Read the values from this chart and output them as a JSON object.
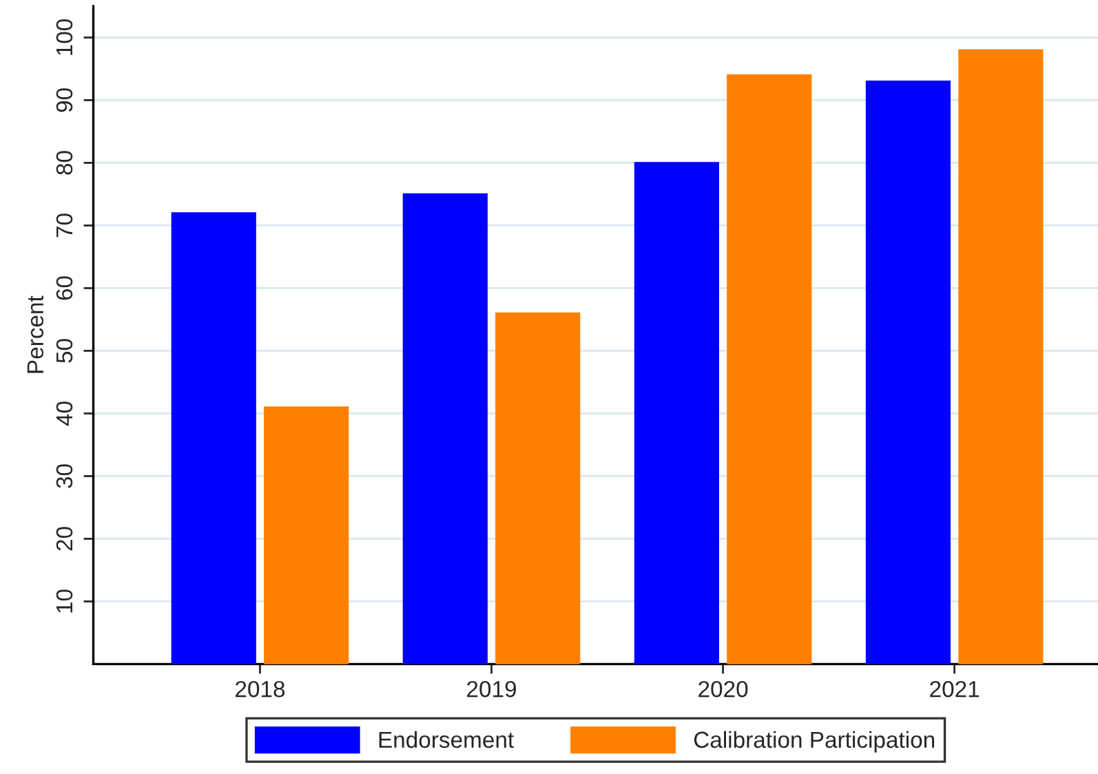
{
  "chart_data": {
    "type": "bar",
    "ylabel": "Percent",
    "categories": [
      "2018",
      "2019",
      "2020",
      "2021"
    ],
    "series": [
      {
        "name": "Endorsement",
        "color": "#0000ff",
        "values": [
          72,
          75,
          80,
          93
        ]
      },
      {
        "name": "Calibration Participation",
        "color": "#ff8000",
        "values": [
          41,
          56,
          94,
          98
        ]
      }
    ],
    "ylim": [
      0,
      105
    ],
    "yticks": [
      10,
      20,
      30,
      40,
      50,
      60,
      70,
      80,
      90,
      100
    ],
    "grid": "y",
    "legend": "bottom"
  }
}
